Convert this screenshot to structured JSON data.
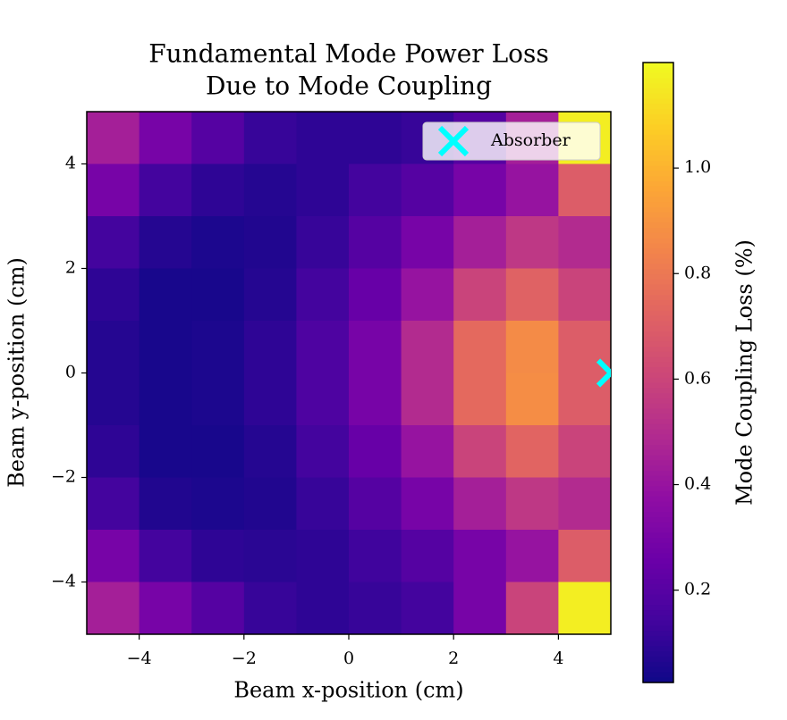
{
  "chart_data": {
    "type": "heatmap",
    "title": [
      "Fundamental Mode Power Loss",
      "Due to Mode Coupling"
    ],
    "x_label": "Beam x-position (cm)",
    "y_label": "Beam y-position (cm)",
    "colorbar_label": "Mode Coupling Loss (%)",
    "colormap": "plasma",
    "x": [
      -4.5,
      -3.5,
      -2.5,
      -1.5,
      -0.5,
      0.5,
      1.5,
      2.5,
      3.5,
      4.5
    ],
    "y": [
      4.5,
      3.5,
      2.5,
      1.5,
      0.5,
      -0.5,
      -1.5,
      -2.5,
      -3.5,
      -4.5
    ],
    "z": [
      [
        0.45,
        0.3,
        0.2,
        0.12,
        0.1,
        0.1,
        0.12,
        0.2,
        0.45,
        1.17
      ],
      [
        0.3,
        0.15,
        0.1,
        0.08,
        0.1,
        0.15,
        0.2,
        0.3,
        0.4,
        0.7
      ],
      [
        0.15,
        0.08,
        0.06,
        0.07,
        0.12,
        0.2,
        0.3,
        0.45,
        0.55,
        0.5
      ],
      [
        0.1,
        0.05,
        0.05,
        0.08,
        0.15,
        0.25,
        0.4,
        0.6,
        0.72,
        0.6
      ],
      [
        0.08,
        0.05,
        0.06,
        0.1,
        0.18,
        0.3,
        0.5,
        0.75,
        0.87,
        0.7
      ],
      [
        0.08,
        0.05,
        0.06,
        0.1,
        0.18,
        0.3,
        0.5,
        0.75,
        0.88,
        0.7
      ],
      [
        0.1,
        0.05,
        0.05,
        0.08,
        0.15,
        0.25,
        0.4,
        0.6,
        0.73,
        0.6
      ],
      [
        0.15,
        0.07,
        0.06,
        0.07,
        0.12,
        0.2,
        0.3,
        0.45,
        0.55,
        0.5
      ],
      [
        0.3,
        0.15,
        0.1,
        0.09,
        0.1,
        0.14,
        0.2,
        0.3,
        0.4,
        0.7
      ],
      [
        0.45,
        0.3,
        0.2,
        0.12,
        0.1,
        0.12,
        0.15,
        0.3,
        0.6,
        1.17
      ]
    ],
    "xlim": [
      -5,
      5
    ],
    "ylim": [
      -5,
      5
    ],
    "xticks": [
      {
        "value": -4,
        "label": "−4"
      },
      {
        "value": -2,
        "label": "−2"
      },
      0,
      2,
      4
    ],
    "yticks": [
      {
        "value": -4,
        "label": "−4"
      },
      {
        "value": -2,
        "label": "−2"
      },
      0,
      2,
      4
    ],
    "zlim": [
      0.025,
      1.2
    ],
    "zticks": [
      0.2,
      0.4,
      0.6,
      0.8,
      {
        "value": 1,
        "label": "1.0"
      }
    ],
    "markers": [
      {
        "name": "Absorber",
        "color": "#00ffff",
        "x": [
          5
        ],
        "y": [
          0
        ]
      }
    ],
    "legend": "upper right"
  }
}
